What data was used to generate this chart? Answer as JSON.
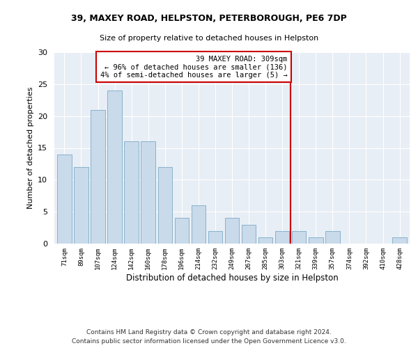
{
  "title1": "39, MAXEY ROAD, HELPSTON, PETERBOROUGH, PE6 7DP",
  "title2": "Size of property relative to detached houses in Helpston",
  "xlabel": "Distribution of detached houses by size in Helpston",
  "ylabel": "Number of detached properties",
  "categories": [
    "71sqm",
    "89sqm",
    "107sqm",
    "124sqm",
    "142sqm",
    "160sqm",
    "178sqm",
    "196sqm",
    "214sqm",
    "232sqm",
    "249sqm",
    "267sqm",
    "285sqm",
    "303sqm",
    "321sqm",
    "339sqm",
    "357sqm",
    "374sqm",
    "392sqm",
    "410sqm",
    "428sqm"
  ],
  "values": [
    14,
    12,
    21,
    24,
    16,
    16,
    12,
    4,
    6,
    2,
    4,
    3,
    1,
    2,
    2,
    1,
    2,
    0,
    0,
    0,
    1
  ],
  "bar_color": "#c9daea",
  "bar_edge_color": "#7aaac8",
  "vline_color": "#cc0000",
  "vline_pos": 13.5,
  "annotation_title": "39 MAXEY ROAD: 309sqm",
  "annotation_line1": "← 96% of detached houses are smaller (136)",
  "annotation_line2": "4% of semi-detached houses are larger (5) →",
  "annotation_box_color": "#cc0000",
  "background_color": "#e8eef5",
  "ylim": [
    0,
    30
  ],
  "yticks": [
    0,
    5,
    10,
    15,
    20,
    25,
    30
  ],
  "footer1": "Contains HM Land Registry data © Crown copyright and database right 2024.",
  "footer2": "Contains public sector information licensed under the Open Government Licence v3.0."
}
